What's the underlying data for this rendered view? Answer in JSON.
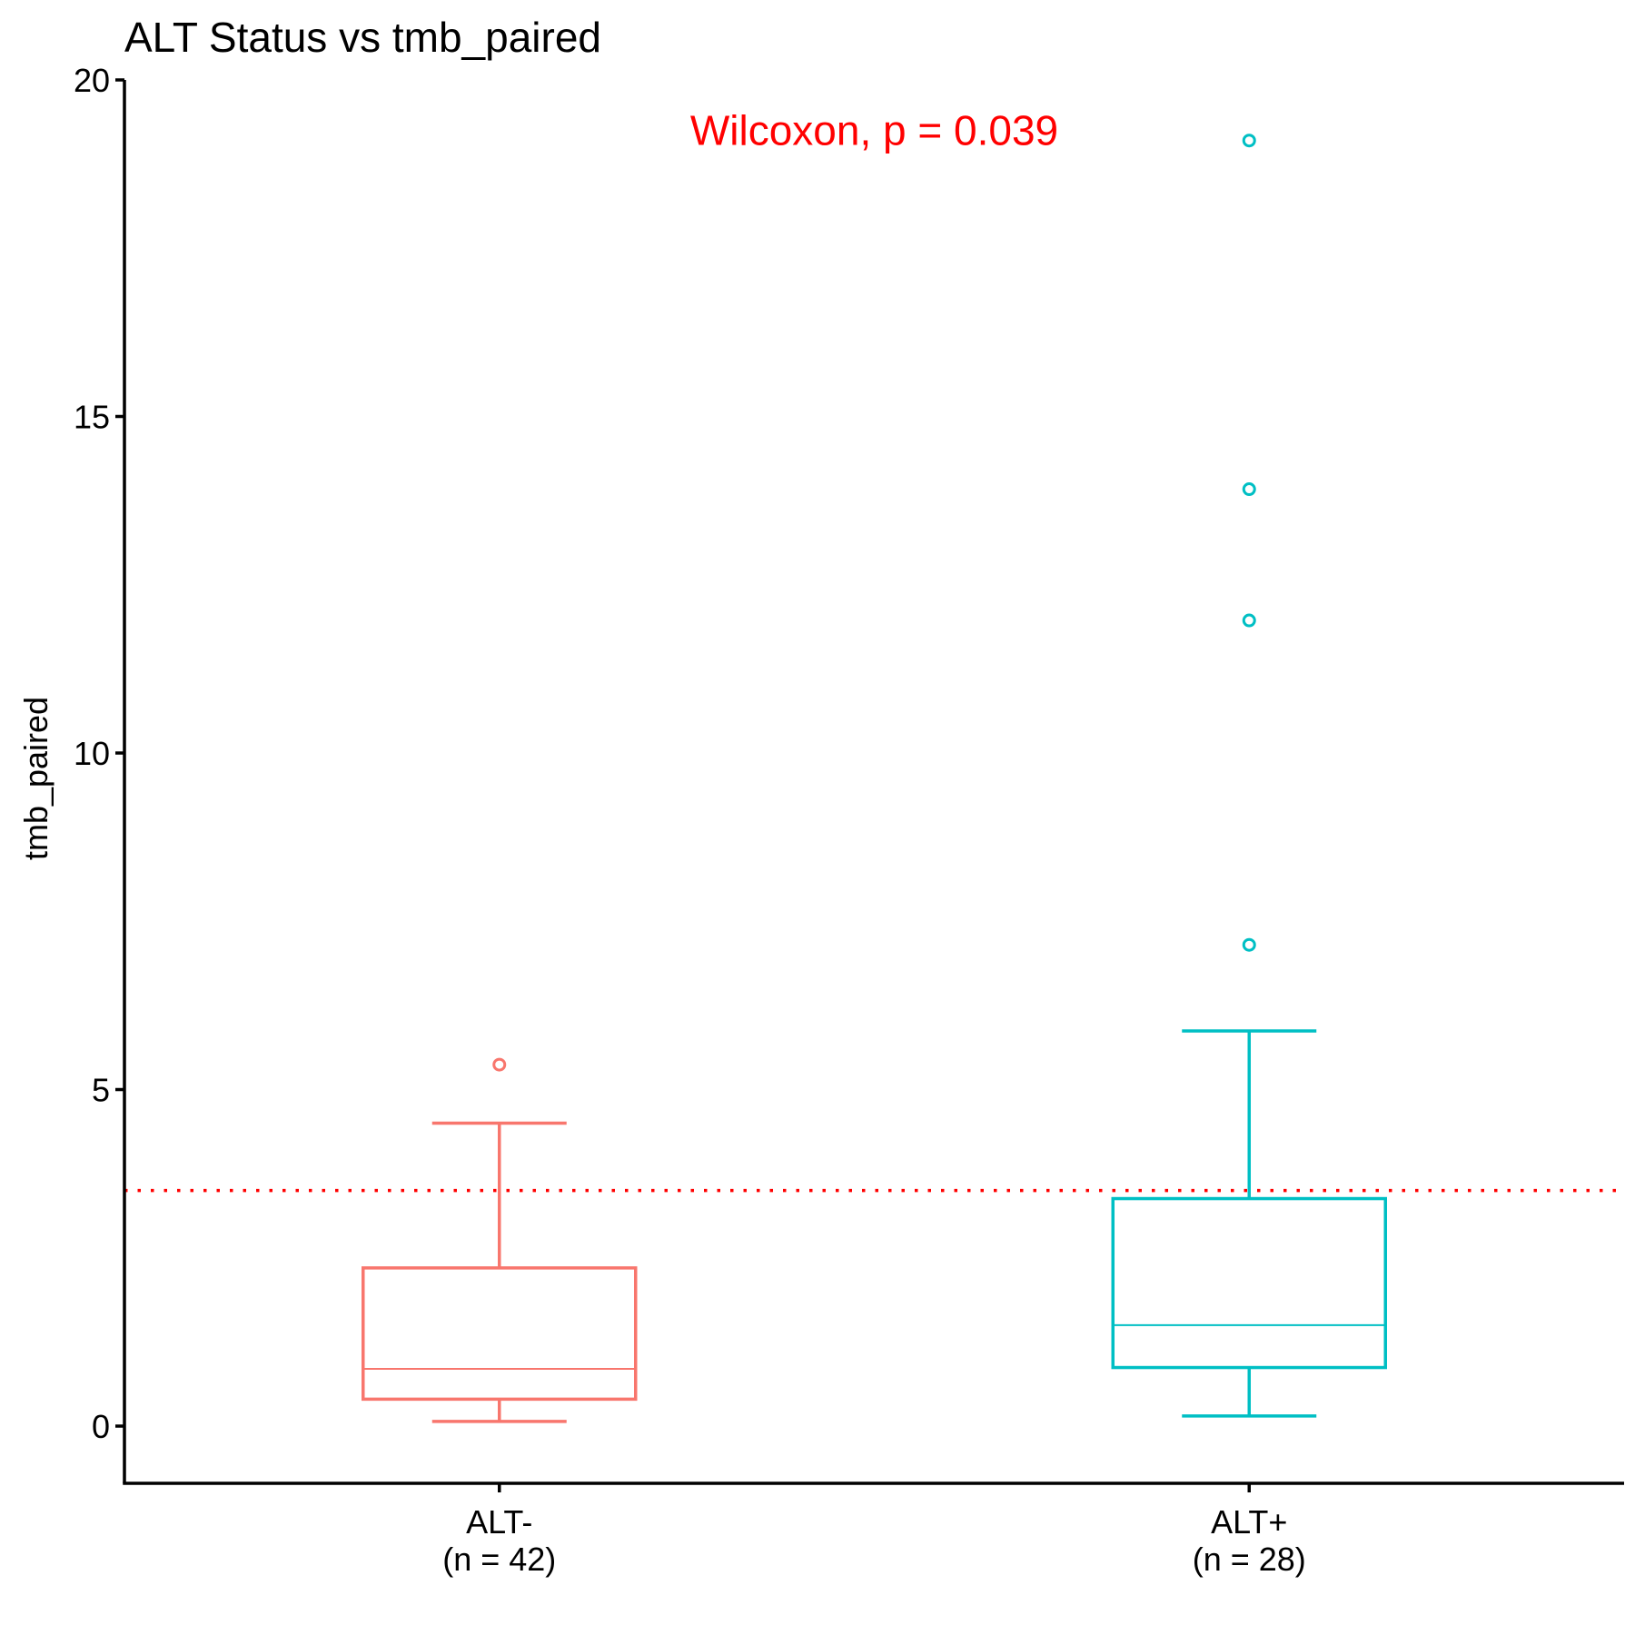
{
  "chart_data": {
    "type": "box",
    "title": "ALT Status vs tmb_paired",
    "xlabel": "",
    "ylabel": "tmb_paired",
    "ylim": [
      -0.85,
      20
    ],
    "yticks": [
      0,
      5,
      10,
      15,
      20
    ],
    "grid": false,
    "legend": "none",
    "groups": [
      {
        "label_line1": "ALT-",
        "label_line2": "(n = 42)",
        "color": "#F8766D",
        "min": 0.07,
        "q1": 0.4,
        "median": 0.85,
        "q3": 2.35,
        "max": 4.5,
        "outliers": [
          5.37
        ]
      },
      {
        "label_line1": "ALT+",
        "label_line2": "(n = 28)",
        "color": "#00BFC4",
        "min": 0.15,
        "q1": 0.87,
        "median": 1.5,
        "q3": 3.38,
        "max": 5.87,
        "outliers": [
          7.15,
          11.97,
          13.92,
          19.1
        ]
      }
    ],
    "reference_line": {
      "y": 3.5,
      "color": "#FF0000",
      "style": "dotted"
    },
    "annotation": {
      "text": "Wilcoxon, p = 0.039",
      "x": 1.5,
      "y": 19.25,
      "color": "#FF0000"
    }
  }
}
